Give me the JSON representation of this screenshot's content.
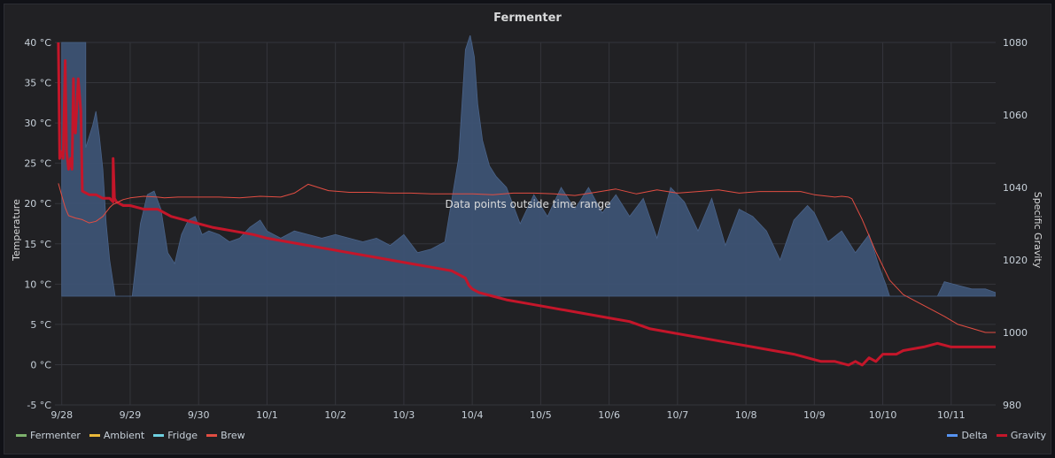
{
  "panel": {
    "title": "Fermenter"
  },
  "overlay_message": "Data points outside time range",
  "legend_left": [
    {
      "label": "Fermenter",
      "color": "#7eb26d"
    },
    {
      "label": "Ambient",
      "color": "#eab839"
    },
    {
      "label": "Fridge",
      "color": "#6ed0e0"
    },
    {
      "label": "Brew",
      "color": "#e24d42"
    }
  ],
  "legend_right": [
    {
      "label": "Delta",
      "color": "#5794f2"
    },
    {
      "label": "Gravity",
      "color": "#c4162a"
    }
  ],
  "chart_data": {
    "type": "line",
    "title": "Fermenter",
    "ylabel": "Temperature",
    "y2label": "Specific Gravity",
    "ylim": [
      -5,
      40
    ],
    "y2lim": [
      980,
      1080
    ],
    "yticks": [
      "-5 °C",
      "0 °C",
      "5 °C",
      "10 °C",
      "15 °C",
      "20 °C",
      "25 °C",
      "30 °C",
      "35 °C",
      "40 °C"
    ],
    "y2ticks": [
      "980",
      "1000",
      "1020",
      "1040",
      "1060",
      "1080"
    ],
    "xticks": [
      "9/28",
      "9/29",
      "9/30",
      "10/1",
      "10/2",
      "10/3",
      "10/4",
      "10/5",
      "10/6",
      "10/7",
      "10/8",
      "10/9",
      "10/10",
      "10/11"
    ],
    "xlim": [
      -0.1,
      13.65
    ],
    "grid": true,
    "series": [
      {
        "name": "Delta",
        "axis": "right",
        "type": "area",
        "color": "#5794f2",
        "x": [
          0.0,
          0.0,
          0.35,
          0.35,
          0.45,
          0.5,
          0.55,
          0.6,
          0.65,
          0.7,
          0.78,
          0.78,
          1.03,
          1.03,
          1.15,
          1.25,
          1.35,
          1.45,
          1.55,
          1.65,
          1.75,
          1.85,
          1.95,
          2.05,
          2.15,
          2.3,
          2.45,
          2.6,
          2.75,
          2.9,
          3.0,
          3.1,
          3.2,
          3.4,
          3.6,
          3.8,
          4.0,
          4.2,
          4.4,
          4.6,
          4.8,
          5.0,
          5.2,
          5.4,
          5.6,
          5.8,
          5.9,
          5.97,
          6.03,
          6.08,
          6.15,
          6.25,
          6.35,
          6.5,
          6.7,
          6.9,
          7.1,
          7.3,
          7.5,
          7.7,
          7.9,
          8.1,
          8.3,
          8.5,
          8.7,
          8.9,
          9.1,
          9.3,
          9.5,
          9.7,
          9.9,
          10.1,
          10.3,
          10.5,
          10.7,
          10.9,
          11.0,
          11.2,
          11.4,
          11.6,
          11.8,
          11.95,
          12.05,
          12.1,
          12.1,
          12.8,
          12.8,
          12.9,
          13.1,
          13.3,
          13.5,
          13.65,
          13.65
        ],
        "y": [
          1010,
          1080,
          1080,
          1051,
          1057,
          1061,
          1054,
          1045,
          1030,
          1020,
          1010,
          1010,
          1010,
          1010,
          1030,
          1038,
          1039,
          1034,
          1022,
          1019,
          1027,
          1031,
          1032,
          1027,
          1028,
          1027,
          1025,
          1026,
          1029,
          1031,
          1028,
          1027,
          1026,
          1028,
          1027,
          1026,
          1027,
          1026,
          1025,
          1026,
          1024,
          1027,
          1022,
          1023,
          1025,
          1048,
          1078,
          1082,
          1076,
          1063,
          1053,
          1046,
          1043,
          1040,
          1030,
          1038,
          1032,
          1040,
          1034,
          1040,
          1033,
          1038,
          1032,
          1037,
          1026,
          1040,
          1036,
          1028,
          1037,
          1024,
          1034,
          1032,
          1028,
          1020,
          1031,
          1035,
          1033,
          1025,
          1028,
          1022,
          1027,
          1018,
          1013,
          1010,
          1010,
          1010,
          1010,
          1014,
          1013,
          1012,
          1012,
          1011,
          1010
        ]
      },
      {
        "name": "Gravity",
        "axis": "right",
        "type": "line",
        "color": "#c4162a",
        "x": [
          -0.05,
          -0.03,
          -0.02,
          0.0,
          0.02,
          0.05,
          0.07,
          0.1,
          0.13,
          0.15,
          0.17,
          0.18,
          0.2,
          0.24,
          0.28,
          0.3,
          0.4,
          0.5,
          0.6,
          0.7,
          0.75,
          0.75,
          0.77,
          0.8,
          0.9,
          1.0,
          1.2,
          1.4,
          1.6,
          1.8,
          2.0,
          2.2,
          2.5,
          2.8,
          3.0,
          3.3,
          3.6,
          3.9,
          4.2,
          4.5,
          4.8,
          5.1,
          5.4,
          5.7,
          5.9,
          5.95,
          6.0,
          6.1,
          6.3,
          6.5,
          6.8,
          7.1,
          7.4,
          7.7,
          8.0,
          8.3,
          8.6,
          8.9,
          9.2,
          9.5,
          9.8,
          10.1,
          10.4,
          10.7,
          10.9,
          11.1,
          11.3,
          11.5,
          11.6,
          11.7,
          11.8,
          11.9,
          12.0,
          12.1,
          12.2,
          12.3,
          12.6,
          12.8,
          12.8,
          13.0,
          13.3,
          13.65
        ],
        "y": [
          1080,
          1048,
          1050,
          1049,
          1048,
          1075,
          1050,
          1045,
          1048,
          1045,
          1070,
          1057,
          1055,
          1070,
          1061,
          1039,
          1038,
          1038,
          1037,
          1037,
          1036,
          1048,
          1037,
          1036,
          1035,
          1035,
          1034,
          1034,
          1032,
          1031,
          1030,
          1029,
          1028,
          1027,
          1026,
          1025,
          1024,
          1023,
          1022,
          1021,
          1020,
          1019,
          1018,
          1017,
          1015,
          1013,
          1012,
          1011,
          1010,
          1009,
          1008,
          1007,
          1006,
          1005,
          1004,
          1003,
          1001,
          1000,
          999,
          998,
          997,
          996,
          995,
          994,
          993,
          992,
          992,
          991,
          992,
          991,
          993,
          992,
          994,
          994,
          994,
          995,
          996,
          997,
          997,
          996,
          996,
          996
        ]
      },
      {
        "name": "Brew",
        "axis": "left",
        "type": "line",
        "color": "#e24d42",
        "x": [
          -0.05,
          0.0,
          0.05,
          0.1,
          0.2,
          0.3,
          0.35,
          0.4,
          0.5,
          0.6,
          0.7,
          0.75,
          0.78,
          0.85,
          0.9,
          1.0,
          1.2,
          1.4,
          1.5,
          1.7,
          2.0,
          2.3,
          2.6,
          2.9,
          3.2,
          3.4,
          3.6,
          3.9,
          4.2,
          4.5,
          4.8,
          5.1,
          5.4,
          5.7,
          6.0,
          6.3,
          6.6,
          6.9,
          7.2,
          7.5,
          7.8,
          8.1,
          8.4,
          8.7,
          9.0,
          9.3,
          9.6,
          9.9,
          10.2,
          10.5,
          10.8,
          11.0,
          11.1,
          11.2,
          11.3,
          11.4,
          11.5,
          11.55,
          11.7,
          11.9,
          12.1,
          12.3,
          12.5,
          12.7,
          12.9,
          13.1,
          13.3,
          13.5,
          13.65
        ],
        "y": [
          22.5,
          21.0,
          19.5,
          18.5,
          18.2,
          18.0,
          17.8,
          17.6,
          17.8,
          18.4,
          19.5,
          19.9,
          20.0,
          20.3,
          20.5,
          20.7,
          20.9,
          20.8,
          20.7,
          20.8,
          20.8,
          20.8,
          20.7,
          20.9,
          20.8,
          21.3,
          22.4,
          21.6,
          21.4,
          21.4,
          21.3,
          21.3,
          21.2,
          21.2,
          21.2,
          21.1,
          21.3,
          21.3,
          21.2,
          21.0,
          21.4,
          21.8,
          21.2,
          21.7,
          21.3,
          21.5,
          21.7,
          21.3,
          21.5,
          21.5,
          21.5,
          21.1,
          21.0,
          20.9,
          20.8,
          20.9,
          20.8,
          20.6,
          18.0,
          14.0,
          10.5,
          8.7,
          7.8,
          6.9,
          6.0,
          5.0,
          4.5,
          4.0,
          4.0
        ]
      }
    ]
  }
}
